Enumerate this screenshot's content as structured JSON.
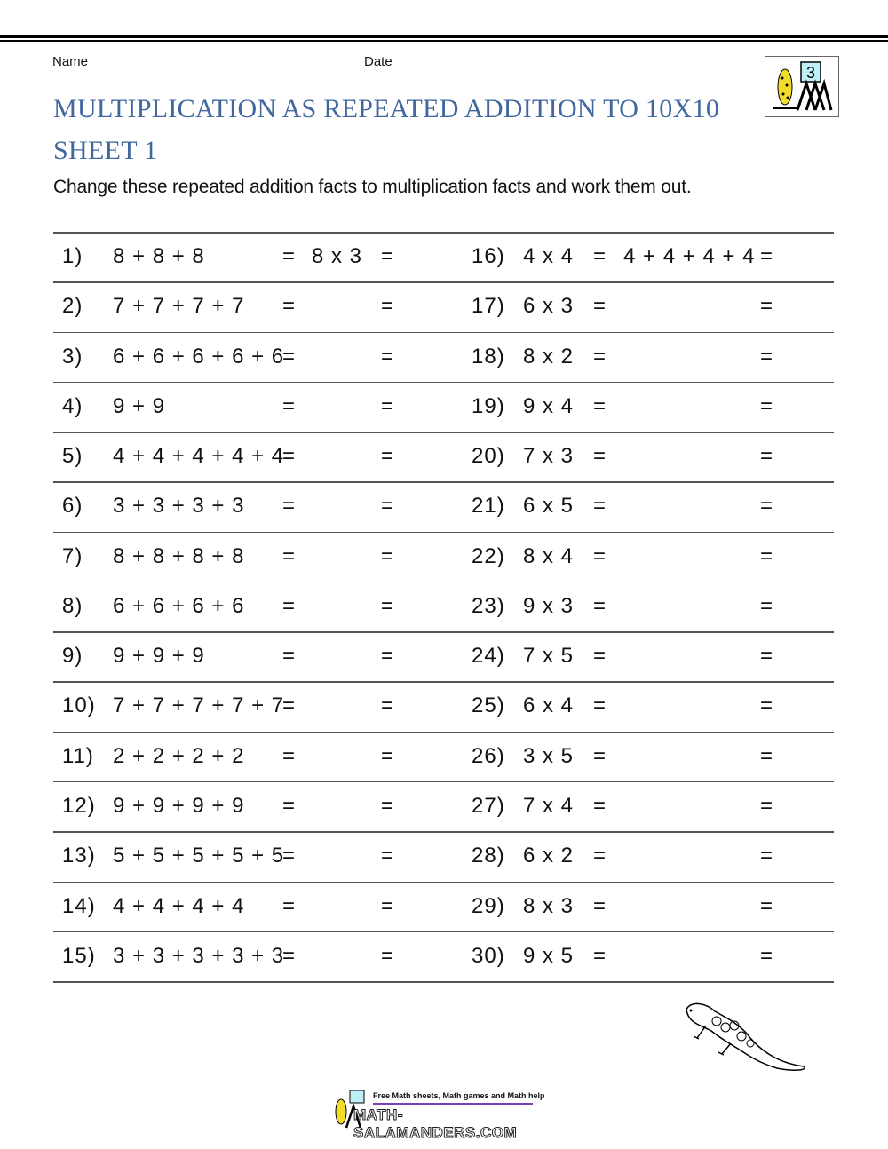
{
  "header": {
    "name_label": "Name",
    "date_label": "Date",
    "title_line1": "MULTIPLICATION AS REPEATED ADDITION TO 10X10",
    "title_line2": "SHEET 1",
    "instructions": "Change these repeated addition facts to multiplication facts and work them out.",
    "logo_badge": "3"
  },
  "colors": {
    "title": "#41679f",
    "footer_bar": "#7b3fb8"
  },
  "left_column": [
    {
      "num": "1)",
      "expr": "8 + 8 + 8",
      "eq1": "=",
      "answer": "8 x 3",
      "eq2": "="
    },
    {
      "num": "2)",
      "expr": "7 + 7 + 7 + 7",
      "eq1": "=",
      "answer": "",
      "eq2": "="
    },
    {
      "num": "3)",
      "expr": "6 + 6 + 6 + 6 + 6",
      "eq1": "=",
      "answer": "",
      "eq2": "="
    },
    {
      "num": "4)",
      "expr": "9 + 9",
      "eq1": "=",
      "answer": "",
      "eq2": "="
    },
    {
      "num": "5)",
      "expr": "4 + 4 + 4 + 4 + 4",
      "eq1": "=",
      "answer": "",
      "eq2": "="
    },
    {
      "num": "6)",
      "expr": "3 + 3 + 3 + 3",
      "eq1": "=",
      "answer": "",
      "eq2": "="
    },
    {
      "num": "7)",
      "expr": "8 + 8 + 8 + 8",
      "eq1": "=",
      "answer": "",
      "eq2": "="
    },
    {
      "num": "8)",
      "expr": "6 + 6 + 6 + 6",
      "eq1": "=",
      "answer": "",
      "eq2": "="
    },
    {
      "num": "9)",
      "expr": "9 + 9 + 9",
      "eq1": "=",
      "answer": "",
      "eq2": "="
    },
    {
      "num": "10)",
      "expr": "7 + 7 + 7 + 7 + 7",
      "eq1": "=",
      "answer": "",
      "eq2": "="
    },
    {
      "num": "11)",
      "expr": "2 + 2 + 2 + 2",
      "eq1": "=",
      "answer": "",
      "eq2": "="
    },
    {
      "num": "12)",
      "expr": "9 + 9 + 9 + 9",
      "eq1": "=",
      "answer": "",
      "eq2": "="
    },
    {
      "num": "13)",
      "expr": "5 + 5 + 5 + 5 + 5",
      "eq1": "=",
      "answer": "",
      "eq2": "="
    },
    {
      "num": "14)",
      "expr": "4 + 4 + 4 + 4",
      "eq1": "=",
      "answer": "",
      "eq2": "="
    },
    {
      "num": "15)",
      "expr": "3 + 3 + 3 + 3 + 3",
      "eq1": "=",
      "answer": "",
      "eq2": "="
    }
  ],
  "right_column": [
    {
      "num": "16)",
      "expr": "4 x 4",
      "eq1": "=",
      "answer": "4 + 4 + 4 + 4",
      "eq2": "="
    },
    {
      "num": "17)",
      "expr": "6 x 3",
      "eq1": "=",
      "answer": "",
      "eq2": "="
    },
    {
      "num": "18)",
      "expr": "8 x 2",
      "eq1": "=",
      "answer": "",
      "eq2": "="
    },
    {
      "num": "19)",
      "expr": "9 x 4",
      "eq1": "=",
      "answer": "",
      "eq2": "="
    },
    {
      "num": "20)",
      "expr": "7 x 3",
      "eq1": "=",
      "answer": "",
      "eq2": "="
    },
    {
      "num": "21)",
      "expr": "6 x 5",
      "eq1": "=",
      "answer": "",
      "eq2": "="
    },
    {
      "num": "22)",
      "expr": "8 x 4",
      "eq1": "=",
      "answer": "",
      "eq2": "="
    },
    {
      "num": "23)",
      "expr": "9 x 3",
      "eq1": "=",
      "answer": "",
      "eq2": "="
    },
    {
      "num": "24)",
      "expr": "7 x 5",
      "eq1": "=",
      "answer": "",
      "eq2": "="
    },
    {
      "num": "25)",
      "expr": "6 x 4",
      "eq1": "=",
      "answer": "",
      "eq2": "="
    },
    {
      "num": "26)",
      "expr": "3 x 5",
      "eq1": "=",
      "answer": "",
      "eq2": "="
    },
    {
      "num": "27)",
      "expr": "7 x 4",
      "eq1": "=",
      "answer": "",
      "eq2": "="
    },
    {
      "num": "28)",
      "expr": "6 x 2",
      "eq1": "=",
      "answer": "",
      "eq2": "="
    },
    {
      "num": "29)",
      "expr": "8 x 3",
      "eq1": "=",
      "answer": "",
      "eq2": "="
    },
    {
      "num": "30)",
      "expr": "9 x 5",
      "eq1": "=",
      "answer": "",
      "eq2": "="
    }
  ],
  "footer": {
    "tagline": "Free Math sheets, Math games and Math help",
    "site": "MATH-SALAMANDERS.COM"
  }
}
